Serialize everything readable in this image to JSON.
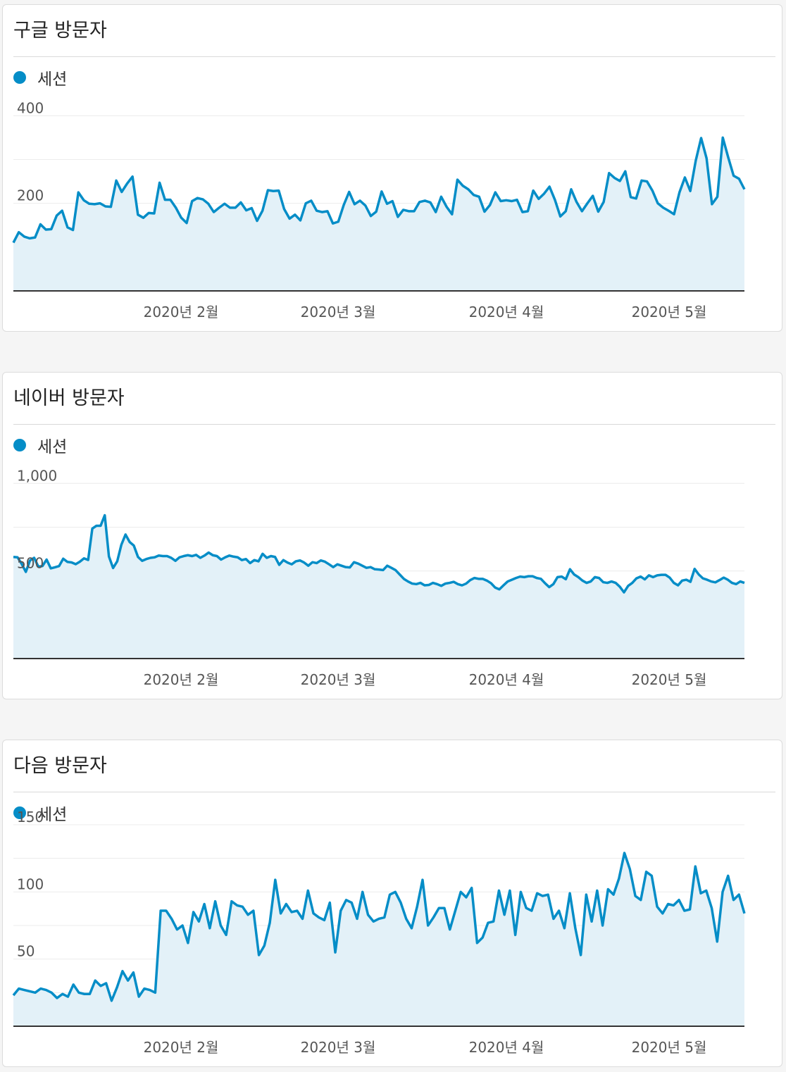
{
  "charts": [
    {
      "title": "구글 방문자",
      "legend": "세션",
      "chart_data": {
        "type": "area",
        "series": [
          {
            "name": "세션",
            "values": [
              110,
              134,
              124,
              120,
              122,
              152,
              140,
              141,
              172,
              183,
              145,
              139,
              225,
              207,
              199,
              198,
              200,
              193,
              192,
              252,
              226,
              245,
              261,
              174,
              167,
              178,
              177,
              247,
              208,
              208,
              190,
              167,
              155,
              205,
              212,
              209,
              199,
              180,
              190,
              199,
              190,
              190,
              202,
              184,
              189,
              160,
              183,
              230,
              228,
              229,
              187,
              165,
              174,
              161,
              200,
              206,
              183,
              180,
              182,
              154,
              158,
              196,
              226,
              198,
              206,
              195,
              171,
              181,
              227,
              199,
              205,
              169,
              185,
              182,
              182,
              203,
              206,
              202,
              180,
              215,
              192,
              175,
              254,
              240,
              232,
              219,
              215,
              181,
              196,
              225,
              205,
              207,
              205,
              208,
              180,
              182,
              229,
              210,
              222,
              238,
              208,
              170,
              182,
              232,
              203,
              182,
              200,
              217,
              181,
              203,
              269,
              258,
              251,
              273,
              214,
              211,
              252,
              250,
              229,
              200,
              190,
              183,
              175,
              225,
              259,
              228,
              297,
              349,
              303,
              198,
              215,
              350,
              305,
              263,
              256,
              232
            ]
          }
        ],
        "x_tick_labels": [
          "2020년 2월",
          "2020년 3월",
          "2020년 4월",
          "2020년 5월"
        ],
        "y_tick_labels": [
          "400",
          "200"
        ],
        "ylim": [
          0,
          460
        ],
        "color": "#058dc7"
      }
    },
    {
      "title": "네이버 방문자",
      "legend": "세션",
      "chart_data": {
        "type": "area",
        "series": [
          {
            "name": "세션",
            "values": [
              580,
              578,
              540,
              495,
              560,
              575,
              525,
              528,
              565,
              515,
              521,
              528,
              570,
              552,
              549,
              539,
              553,
              572,
              563,
              742,
              758,
              758,
              818,
              583,
              517,
              555,
              650,
              708,
              665,
              645,
              580,
              558,
              568,
              575,
              578,
              588,
              585,
              585,
              575,
              558,
              578,
              585,
              590,
              585,
              592,
              575,
              588,
              605,
              590,
              585,
              565,
              578,
              588,
              582,
              578,
              562,
              568,
              545,
              562,
              555,
              598,
              575,
              585,
              580,
              535,
              562,
              548,
              538,
              555,
              560,
              548,
              530,
              550,
              545,
              560,
              553,
              538,
              522,
              538,
              530,
              522,
              520,
              550,
              542,
              530,
              518,
              522,
              510,
              508,
              505,
              530,
              518,
              505,
              480,
              455,
              440,
              428,
              425,
              432,
              418,
              420,
              432,
              425,
              415,
              428,
              432,
              438,
              425,
              418,
              428,
              448,
              460,
              455,
              455,
              445,
              430,
              405,
              395,
              418,
              440,
              450,
              460,
              468,
              465,
              470,
              470,
              460,
              455,
              430,
              408,
              425,
              465,
              468,
              453,
              510,
              480,
              465,
              445,
              432,
              440,
              465,
              460,
              436,
              432,
              440,
              432,
              410,
              378,
              415,
              432,
              458,
              468,
              452,
              475,
              465,
              475,
              478,
              478,
              462,
              432,
              418,
              445,
              450,
              438,
              512,
              480,
              458,
              450,
              440,
              435,
              448,
              462,
              450,
              432,
              425,
              440,
              432
            ]
          }
        ],
        "x_tick_labels": [
          "2020년 2월",
          "2020년 3월",
          "2020년 4월",
          "2020년 5월"
        ],
        "y_tick_labels": [
          "1,000",
          "500"
        ],
        "ylim": [
          0,
          1150
        ],
        "color": "#058dc7"
      }
    },
    {
      "title": "다음 방문자",
      "legend": "세션",
      "chart_data": {
        "type": "area",
        "series": [
          {
            "name": "세션",
            "values": [
              23,
              28,
              27,
              26,
              25,
              28,
              27,
              25,
              21,
              24,
              22,
              31,
              25,
              24,
              24,
              34,
              30,
              32,
              19,
              29,
              41,
              34,
              40,
              22,
              28,
              27,
              25,
              86,
              86,
              80,
              72,
              75,
              62,
              85,
              78,
              91,
              73,
              93,
              75,
              68,
              93,
              90,
              89,
              83,
              86,
              53,
              60,
              77,
              109,
              84,
              91,
              85,
              86,
              80,
              101,
              84,
              81,
              79,
              92,
              55,
              86,
              94,
              92,
              80,
              100,
              83,
              78,
              80,
              81,
              98,
              100,
              92,
              80,
              73,
              89,
              109,
              75,
              81,
              88,
              88,
              72,
              86,
              100,
              96,
              103,
              62,
              66,
              77,
              78,
              101,
              83,
              101,
              68,
              100,
              88,
              86,
              99,
              97,
              98,
              80,
              86,
              73,
              99,
              73,
              53,
              98,
              78,
              101,
              75,
              102,
              98,
              110,
              129,
              117,
              97,
              94,
              115,
              112,
              89,
              84,
              91,
              90,
              94,
              86,
              87,
              119,
              99,
              101,
              88,
              63,
              100,
              112,
              94,
              98,
              84
            ]
          }
        ],
        "x_tick_labels": [
          "2020년 2월",
          "2020년 3월",
          "2020년 4월",
          "2020년 5월"
        ],
        "y_tick_labels": [
          "150",
          "100",
          "50"
        ],
        "ylim": [
          0,
          150
        ],
        "color": "#058dc7"
      }
    }
  ]
}
